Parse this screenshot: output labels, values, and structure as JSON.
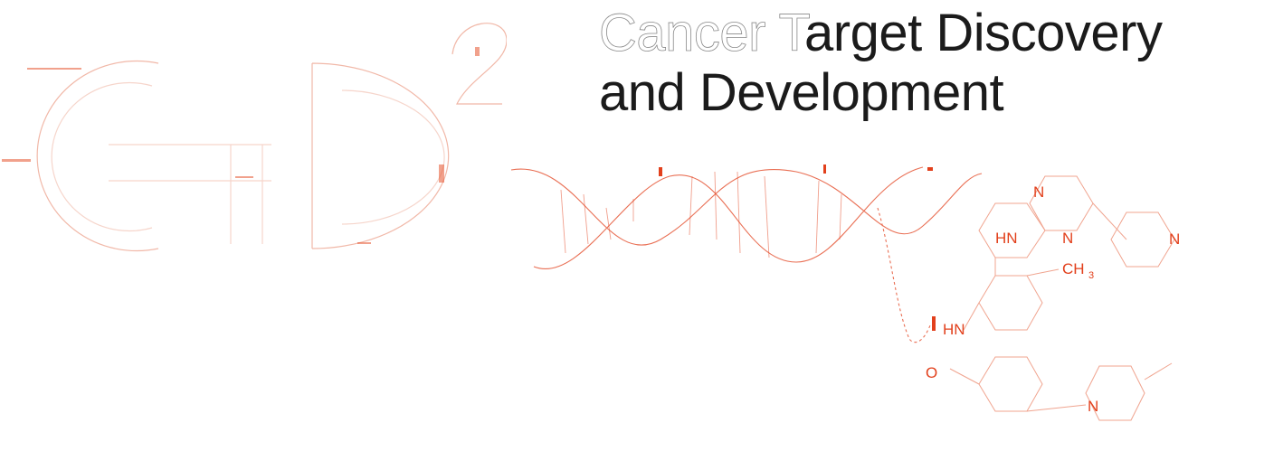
{
  "title": {
    "line1_ghost": "Cancer T",
    "line1_rest": "arget Discovery",
    "line2": "and Development"
  },
  "colors": {
    "accent": "#e2401c",
    "text": "#1b1b1b",
    "background": "#ffffff"
  },
  "molecule": {
    "labels": {
      "n_top": "N",
      "hn_left": "HN",
      "n_middle": "N",
      "n_pyridine": "N",
      "ch3": "CH",
      "ch3_sub": "3",
      "hn_amide": "HN",
      "o": "O",
      "n_piperazine": "N"
    }
  }
}
